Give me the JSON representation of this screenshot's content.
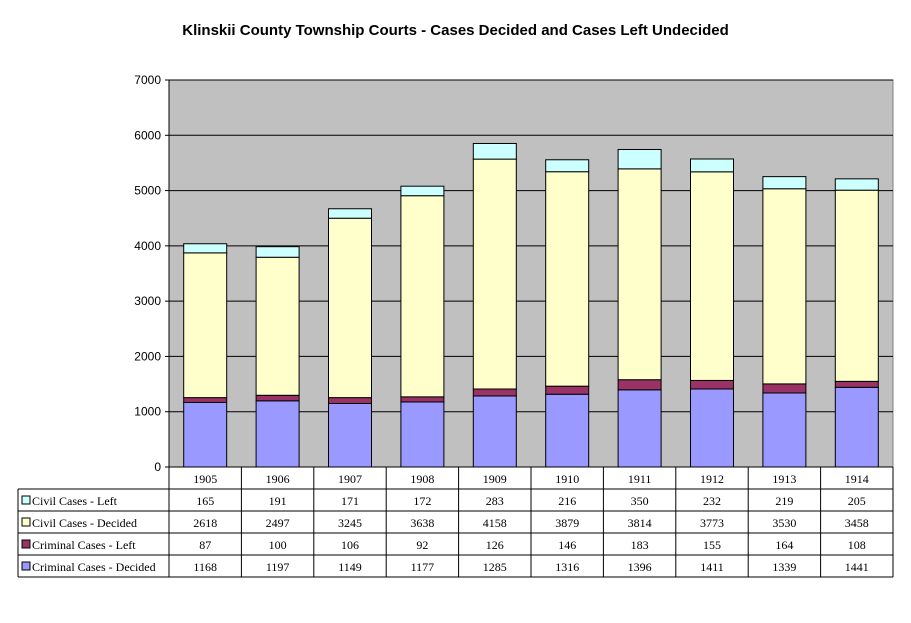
{
  "chart_data": {
    "type": "bar",
    "stacked": true,
    "title": "Klinskii County Township Courts - Cases Decided and Cases Left Undecided",
    "categories": [
      "1905",
      "1906",
      "1907",
      "1908",
      "1909",
      "1910",
      "1911",
      "1912",
      "1913",
      "1914"
    ],
    "ylim": [
      0,
      7000
    ],
    "yticks": [
      0,
      1000,
      2000,
      3000,
      4000,
      5000,
      6000,
      7000
    ],
    "grid": true,
    "plot_background": "#c0c0c0",
    "legend_placement": "data-table-left",
    "series": [
      {
        "name": "Criminal Cases - Decided",
        "color": "#9999ff",
        "values": [
          1168,
          1197,
          1149,
          1177,
          1285,
          1316,
          1396,
          1411,
          1339,
          1441
        ]
      },
      {
        "name": "Criminal Cases - Left",
        "color": "#993366",
        "values": [
          87,
          100,
          106,
          92,
          126,
          146,
          183,
          155,
          164,
          108
        ]
      },
      {
        "name": "Civil Cases - Decided",
        "color": "#ffffcc",
        "values": [
          2618,
          2497,
          3245,
          3638,
          4158,
          3879,
          3814,
          3773,
          3530,
          3458
        ]
      },
      {
        "name": "Civil Cases - Left",
        "color": "#ccffff",
        "values": [
          165,
          191,
          171,
          172,
          283,
          216,
          350,
          232,
          219,
          205
        ]
      }
    ],
    "table_row_order": [
      3,
      2,
      1,
      0
    ]
  }
}
